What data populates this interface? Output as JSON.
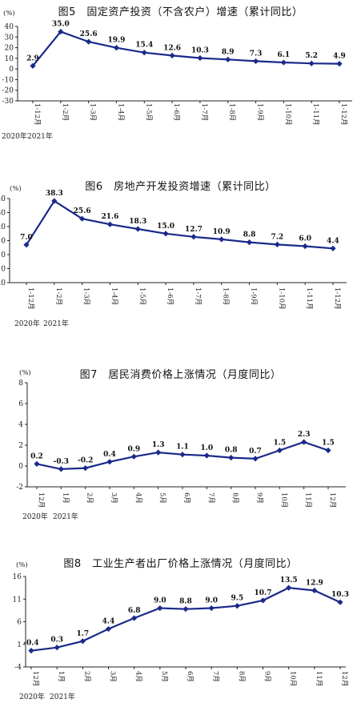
{
  "chart_data": [
    {
      "type": "line",
      "title": "图5　固定资产投资（不含农户）增速（累计同比）",
      "unit": "(%)",
      "categories": [
        "1-12月",
        "1-2月",
        "1-3月",
        "1-4月",
        "1-5月",
        "1-6月",
        "1-7月",
        "1-8月",
        "1-9月",
        "1-10月",
        "1-11月",
        "1-12月"
      ],
      "values": [
        2.9,
        35.0,
        25.6,
        19.9,
        15.4,
        12.6,
        10.3,
        8.9,
        7.3,
        6.1,
        5.2,
        4.9
      ],
      "data_labels": [
        "2.9",
        "35.0",
        "25.6",
        "19.9",
        "15.4",
        "12.6",
        "10.3",
        "8.9",
        "7.3",
        "6.1",
        "5.2",
        "4.9"
      ],
      "y_ticks": [
        "40",
        "30",
        "20",
        "10",
        "0",
        "-10",
        "-20",
        "-30"
      ],
      "ylim": [
        -30,
        40
      ],
      "year_labels": [
        "2020年",
        "2021年"
      ],
      "color": "#1a2a8a"
    },
    {
      "type": "line",
      "title": "图6　房地产开发投资增速（累计同比）",
      "unit": "(%)",
      "categories": [
        "1-12月",
        "1-2月",
        "1-3月",
        "1-4月",
        "1-5月",
        "1-6月",
        "1-7月",
        "1-8月",
        "1-9月",
        "1-10月",
        "1-11月",
        "1-12月"
      ],
      "values": [
        7.0,
        38.3,
        25.6,
        21.6,
        18.3,
        15.0,
        12.7,
        10.9,
        8.8,
        7.2,
        6.0,
        4.4
      ],
      "data_labels": [
        "7.0",
        "38.3",
        "25.6",
        "21.6",
        "18.3",
        "15.0",
        "12.7",
        "10.9",
        "8.8",
        "7.2",
        "6.0",
        "4.4"
      ],
      "y_ticks": [
        "40",
        "30",
        "20",
        "10",
        "0",
        "-10",
        "-20"
      ],
      "ylim": [
        -20,
        40
      ],
      "year_labels": [
        "2020年",
        "2021年"
      ],
      "color": "#1a2a8a"
    },
    {
      "type": "line",
      "title": "图7　居民消费价格上涨情况（月度同比）",
      "unit": "(%)",
      "categories": [
        "12月",
        "1月",
        "2月",
        "3月",
        "4月",
        "5月",
        "6月",
        "7月",
        "8月",
        "9月",
        "10月",
        "11月",
        "12月"
      ],
      "values": [
        0.2,
        -0.3,
        -0.2,
        0.4,
        0.9,
        1.3,
        1.1,
        1.0,
        0.8,
        0.7,
        1.5,
        2.3,
        1.5
      ],
      "data_labels": [
        "0.2",
        "-0.3",
        "-0.2",
        "0.4",
        "0.9",
        "1.3",
        "1.1",
        "1.0",
        "0.8",
        "0.7",
        "1.5",
        "2.3",
        "1.5"
      ],
      "y_ticks": [
        "8",
        "6",
        "4",
        "2",
        "0",
        "-2"
      ],
      "ylim": [
        -2,
        8
      ],
      "year_labels": [
        "2020年",
        "2021年"
      ],
      "color": "#1a2a8a"
    },
    {
      "type": "line",
      "title": "图8　工业生产者出厂价格上涨情况（月度同比）",
      "unit": "(%)",
      "categories": [
        "12月",
        "1月",
        "2月",
        "3月",
        "4月",
        "5月",
        "6月",
        "7月",
        "8月",
        "9月",
        "10月",
        "11月",
        "12月"
      ],
      "values": [
        -0.4,
        0.3,
        1.7,
        4.4,
        6.8,
        9.0,
        8.8,
        9.0,
        9.5,
        10.7,
        13.5,
        12.9,
        10.3
      ],
      "data_labels": [
        "-0.4",
        "0.3",
        "1.7",
        "4.4",
        "6.8",
        "9.0",
        "8.8",
        "9.0",
        "9.5",
        "10.7",
        "13.5",
        "12.9",
        "10.3"
      ],
      "y_ticks": [
        "16",
        "11",
        "6",
        "1",
        "-4"
      ],
      "ylim": [
        -4,
        16
      ],
      "year_labels": [
        "2020年",
        "2021年"
      ],
      "color": "#1a2a8a"
    }
  ]
}
